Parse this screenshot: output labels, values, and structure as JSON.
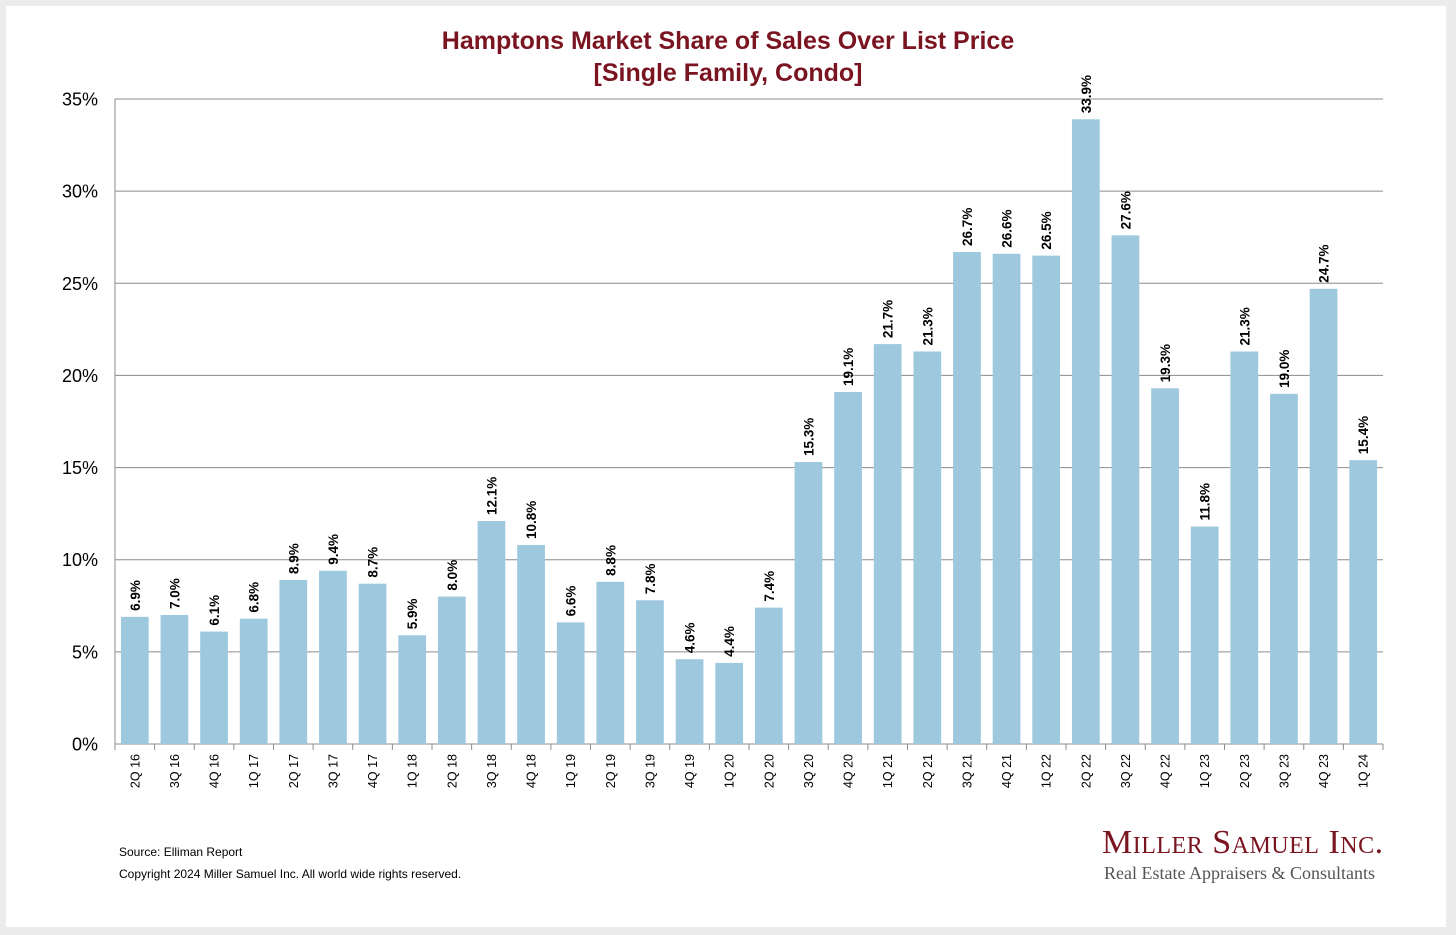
{
  "chart_data": {
    "type": "bar",
    "title": "Hamptons Market Share of Sales Over List Price",
    "subtitle": "[Single Family, Condo]",
    "xlabel": "",
    "ylabel": "",
    "ylim": [
      0,
      35
    ],
    "yticks": [
      "0%",
      "5%",
      "10%",
      "15%",
      "20%",
      "25%",
      "30%",
      "35%"
    ],
    "ytick_values": [
      0,
      5,
      10,
      15,
      20,
      25,
      30,
      35
    ],
    "grid": true,
    "bar_color": "#9ec8de",
    "categories": [
      "2Q 16",
      "3Q 16",
      "4Q 16",
      "1Q 17",
      "2Q 17",
      "3Q 17",
      "4Q 17",
      "1Q 18",
      "2Q 18",
      "3Q 18",
      "4Q 18",
      "1Q 19",
      "2Q 19",
      "3Q 19",
      "4Q 19",
      "1Q 20",
      "2Q 20",
      "3Q 20",
      "4Q 20",
      "1Q 21",
      "2Q 21",
      "3Q 21",
      "4Q 21",
      "1Q 22",
      "2Q 22",
      "3Q 22",
      "4Q 22",
      "1Q 23",
      "2Q 23",
      "3Q 23",
      "4Q 23",
      "1Q 24"
    ],
    "values": [
      6.9,
      7.0,
      6.1,
      6.8,
      8.9,
      9.4,
      8.7,
      5.9,
      8.0,
      12.1,
      10.8,
      6.6,
      8.8,
      7.8,
      4.6,
      4.4,
      7.4,
      15.3,
      19.1,
      21.7,
      21.3,
      26.7,
      26.6,
      26.5,
      33.9,
      27.6,
      19.3,
      11.8,
      21.3,
      19.0,
      24.7,
      15.4
    ],
    "labels": [
      "6.9%",
      "7.0%",
      "6.1%",
      "6.8%",
      "8.9%",
      "9.4%",
      "8.7%",
      "5.9%",
      "8.0%",
      "12.1%",
      "10.8%",
      "6.6%",
      "8.8%",
      "7.8%",
      "4.6%",
      "4.4%",
      "7.4%",
      "15.3%",
      "19.1%",
      "21.7%",
      "21.3%",
      "26.7%",
      "26.6%",
      "26.5%",
      "33.9%",
      "27.6%",
      "19.3%",
      "11.8%",
      "21.3%",
      "19.0%",
      "24.7%",
      "15.4%"
    ]
  },
  "footer": {
    "source": "Source: Elliman Report",
    "copyright": "Copyright 2024 Miller Samuel Inc.  All world wide rights reserved."
  },
  "logo": {
    "name": "Miller Samuel Inc.",
    "tagline": "Real Estate Appraisers & Consultants"
  }
}
